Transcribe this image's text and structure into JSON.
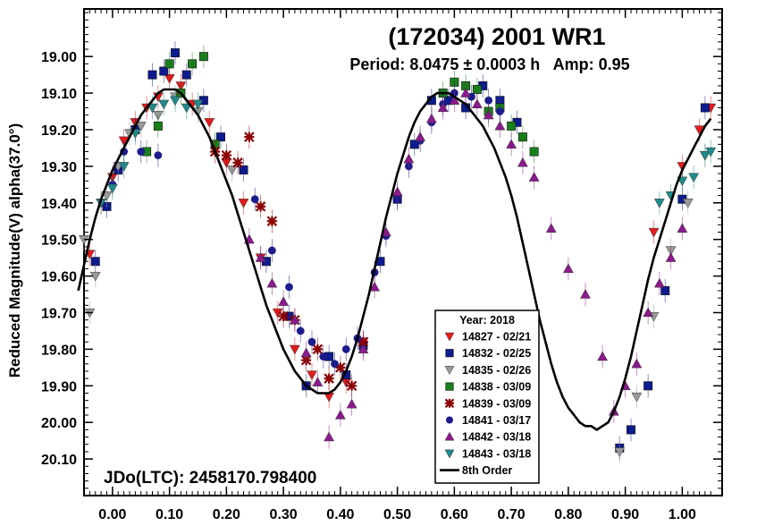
{
  "chart_data": {
    "type": "scatter",
    "title": "(172034) 2001 WR1",
    "subtitle": "Period: 8.0475 ± 0.0003 h   Amp: 0.95",
    "xlabel": "",
    "ylabel": "Reduced Magnitude(V) alpha(37.0°)",
    "annotation": "JDo(LTC): 2458170.798400",
    "xlim": [
      -0.05,
      1.07
    ],
    "ylim": [
      20.2,
      18.87
    ],
    "y_inverted": true,
    "grid": false,
    "legend_placement": "bottom-center",
    "legend_title": "Year: 2018",
    "x_ticks": [
      "0.00",
      "0.10",
      "0.20",
      "0.30",
      "0.40",
      "0.50",
      "0.60",
      "0.70",
      "0.80",
      "0.90",
      "1.00"
    ],
    "y_ticks": [
      "19.00",
      "19.10",
      "19.20",
      "19.30",
      "19.40",
      "19.50",
      "19.60",
      "19.70",
      "19.80",
      "19.90",
      "20.00",
      "20.10"
    ],
    "fit_curve": {
      "name": "8th Order",
      "color": "#000000",
      "x": [
        -0.06,
        -0.05,
        -0.04,
        -0.03,
        -0.02,
        -0.01,
        0.0,
        0.01,
        0.02,
        0.03,
        0.04,
        0.05,
        0.06,
        0.07,
        0.08,
        0.09,
        0.1,
        0.11,
        0.12,
        0.13,
        0.14,
        0.15,
        0.16,
        0.17,
        0.18,
        0.19,
        0.2,
        0.21,
        0.22,
        0.23,
        0.24,
        0.25,
        0.26,
        0.27,
        0.28,
        0.29,
        0.3,
        0.31,
        0.32,
        0.33,
        0.34,
        0.35,
        0.36,
        0.37,
        0.38,
        0.39,
        0.4,
        0.41,
        0.42,
        0.43,
        0.44,
        0.45,
        0.46,
        0.47,
        0.48,
        0.49,
        0.5,
        0.51,
        0.52,
        0.53,
        0.54,
        0.55,
        0.56,
        0.57,
        0.58,
        0.59,
        0.6,
        0.61,
        0.62,
        0.63,
        0.64,
        0.65,
        0.66,
        0.67,
        0.68,
        0.69,
        0.7,
        0.71,
        0.72,
        0.73,
        0.74,
        0.75,
        0.76,
        0.77,
        0.78,
        0.79,
        0.8,
        0.81,
        0.82,
        0.83,
        0.84,
        0.85,
        0.86,
        0.87,
        0.88,
        0.89,
        0.9,
        0.91,
        0.92,
        0.93,
        0.94,
        0.95,
        0.96,
        0.97,
        0.98,
        0.99,
        1.0,
        1.01,
        1.02,
        1.03,
        1.04,
        1.05
      ],
      "y": [
        19.64,
        19.57,
        19.5,
        19.44,
        19.39,
        19.35,
        19.31,
        19.28,
        19.25,
        19.22,
        19.19,
        19.16,
        19.14,
        19.12,
        19.1,
        19.09,
        19.09,
        19.09,
        19.1,
        19.12,
        19.14,
        19.16,
        19.19,
        19.22,
        19.26,
        19.3,
        19.34,
        19.38,
        19.43,
        19.48,
        19.53,
        19.58,
        19.63,
        19.68,
        19.72,
        19.76,
        19.8,
        19.83,
        19.86,
        19.88,
        19.9,
        19.91,
        19.92,
        19.92,
        19.92,
        19.91,
        19.89,
        19.86,
        19.82,
        19.77,
        19.71,
        19.65,
        19.58,
        19.51,
        19.44,
        19.38,
        19.32,
        19.27,
        19.22,
        19.18,
        19.15,
        19.13,
        19.11,
        19.1,
        19.1,
        19.1,
        19.11,
        19.12,
        19.13,
        19.15,
        19.17,
        19.19,
        19.22,
        19.25,
        19.29,
        19.33,
        19.38,
        19.44,
        19.51,
        19.58,
        19.65,
        19.72,
        19.78,
        19.84,
        19.89,
        19.93,
        19.96,
        19.98,
        20.0,
        20.01,
        20.01,
        20.02,
        20.01,
        20.0,
        19.97,
        19.93,
        19.88,
        19.82,
        19.75,
        19.68,
        19.61,
        19.55,
        19.5,
        19.45,
        19.4,
        19.35,
        19.31,
        19.28,
        19.25,
        19.22,
        19.19,
        19.17
      ]
    },
    "series": [
      {
        "name": "14827 - 02/21",
        "marker": "triangle-down",
        "color": "#e31a1c",
        "x": [
          -0.04,
          -0.02,
          0.0,
          0.02,
          0.04,
          0.06,
          0.08,
          0.1,
          0.12,
          0.14,
          0.17,
          0.2,
          0.23,
          0.26,
          0.29,
          0.32,
          0.35,
          0.38,
          0.41,
          0.44,
          0.95,
          1.0,
          1.03,
          1.05
        ],
        "y": [
          19.54,
          19.4,
          19.33,
          19.23,
          19.18,
          19.14,
          19.11,
          19.06,
          19.08,
          19.13,
          19.18,
          19.29,
          19.4,
          19.55,
          19.7,
          19.8,
          19.87,
          19.93,
          19.89,
          19.78,
          19.48,
          19.3,
          19.2,
          19.14
        ]
      },
      {
        "name": "14832 - 02/25",
        "marker": "square",
        "color": "#0d1b8f",
        "x": [
          -0.03,
          -0.01,
          0.01,
          0.04,
          0.07,
          0.09,
          0.11,
          0.13,
          0.16,
          0.19,
          0.23,
          0.27,
          0.31,
          0.34,
          0.38,
          0.41,
          0.44,
          0.47,
          0.5,
          0.53,
          0.56,
          0.59,
          0.62,
          0.65,
          0.68,
          0.71,
          0.89,
          0.91,
          0.94,
          0.97,
          1.0,
          1.04
        ],
        "y": [
          19.56,
          19.41,
          19.31,
          19.2,
          19.05,
          19.04,
          18.99,
          19.05,
          19.12,
          19.22,
          19.31,
          19.56,
          19.71,
          19.9,
          19.82,
          19.87,
          19.79,
          19.56,
          19.39,
          19.24,
          19.12,
          19.12,
          19.14,
          19.08,
          19.12,
          19.18,
          20.07,
          20.02,
          19.9,
          19.64,
          19.39,
          19.14
        ]
      },
      {
        "name": "14835 - 02/26",
        "marker": "triangle-down",
        "color": "#999999",
        "x": [
          -0.05,
          -0.04,
          -0.03,
          -0.01,
          0.01,
          0.03,
          0.05,
          0.08,
          0.11,
          0.15,
          0.18,
          0.21,
          0.89,
          0.92,
          0.95,
          0.98,
          1.01,
          1.04
        ],
        "y": [
          19.5,
          19.7,
          19.6,
          19.38,
          19.3,
          19.21,
          19.19,
          19.16,
          19.11,
          19.15,
          19.24,
          19.31,
          20.08,
          19.93,
          19.71,
          19.53,
          19.4,
          19.27
        ]
      },
      {
        "name": "14838 - 03/09",
        "marker": "square",
        "color": "#1a7f1a",
        "x": [
          0.06,
          0.08,
          0.1,
          0.12,
          0.14,
          0.16,
          0.18,
          0.58,
          0.6,
          0.62,
          0.64,
          0.66,
          0.68,
          0.7,
          0.72,
          0.74
        ],
        "y": [
          19.26,
          19.19,
          19.02,
          19.1,
          19.02,
          19.0,
          19.24,
          19.1,
          19.07,
          19.08,
          19.09,
          19.15,
          19.14,
          19.19,
          19.22,
          19.26
        ]
      },
      {
        "name": "14839 - 03/09",
        "marker": "x-star",
        "color": "#8b0000",
        "x": [
          0.18,
          0.2,
          0.22,
          0.24,
          0.26,
          0.28,
          0.3,
          0.32,
          0.34,
          0.36,
          0.38,
          0.4,
          0.42,
          0.44
        ],
        "y": [
          19.26,
          19.27,
          19.29,
          19.22,
          19.41,
          19.45,
          19.71,
          19.72,
          19.83,
          19.8,
          19.88,
          19.85,
          19.9,
          19.78
        ]
      },
      {
        "name": "14841 - 03/17",
        "marker": "circle",
        "color": "#1c1c8c",
        "x": [
          0.0,
          0.02,
          0.05,
          0.08,
          0.25,
          0.28,
          0.31,
          0.33,
          0.35,
          0.37,
          0.39,
          0.41,
          0.43,
          0.46,
          0.48,
          0.5,
          0.52,
          0.54,
          0.56,
          0.58,
          0.6,
          0.63,
          0.66,
          0.68
        ],
        "y": [
          19.35,
          19.26,
          19.26,
          19.27,
          19.39,
          19.53,
          19.63,
          19.75,
          19.78,
          19.82,
          19.84,
          19.8,
          19.77,
          19.59,
          19.49,
          19.38,
          19.3,
          19.23,
          19.18,
          19.13,
          19.1,
          19.11,
          19.12,
          19.15
        ]
      },
      {
        "name": "14842 - 03/18",
        "marker": "triangle-up",
        "color": "#8b1a8b",
        "x": [
          0.24,
          0.26,
          0.28,
          0.3,
          0.32,
          0.34,
          0.36,
          0.38,
          0.4,
          0.42,
          0.44,
          0.46,
          0.48,
          0.5,
          0.52,
          0.54,
          0.56,
          0.58,
          0.6,
          0.62,
          0.64,
          0.66,
          0.68,
          0.7,
          0.72,
          0.74,
          0.77,
          0.8,
          0.83,
          0.86,
          0.88,
          0.9,
          0.92,
          0.94,
          0.96,
          0.98,
          1.0
        ],
        "y": [
          19.5,
          19.55,
          19.62,
          19.67,
          19.72,
          19.81,
          19.89,
          20.04,
          19.98,
          19.95,
          19.8,
          19.63,
          19.48,
          19.37,
          19.28,
          19.22,
          19.17,
          19.14,
          19.12,
          19.1,
          19.13,
          19.16,
          19.19,
          19.24,
          19.29,
          19.33,
          19.47,
          19.58,
          19.65,
          19.82,
          19.97,
          19.9,
          19.84,
          19.7,
          19.62,
          19.55,
          19.47
        ]
      },
      {
        "name": "14843 - 03/18",
        "marker": "triangle-down",
        "color": "#1f8a8a",
        "x": [
          -0.02,
          0.0,
          0.02,
          0.04,
          0.07,
          0.09,
          0.11,
          0.13,
          0.15,
          0.96,
          0.98,
          1.0,
          1.02,
          1.04,
          1.05
        ],
        "y": [
          19.4,
          19.36,
          19.3,
          19.21,
          19.14,
          19.13,
          19.12,
          19.14,
          19.13,
          19.4,
          19.38,
          19.34,
          19.33,
          19.27,
          19.26
        ]
      }
    ]
  }
}
